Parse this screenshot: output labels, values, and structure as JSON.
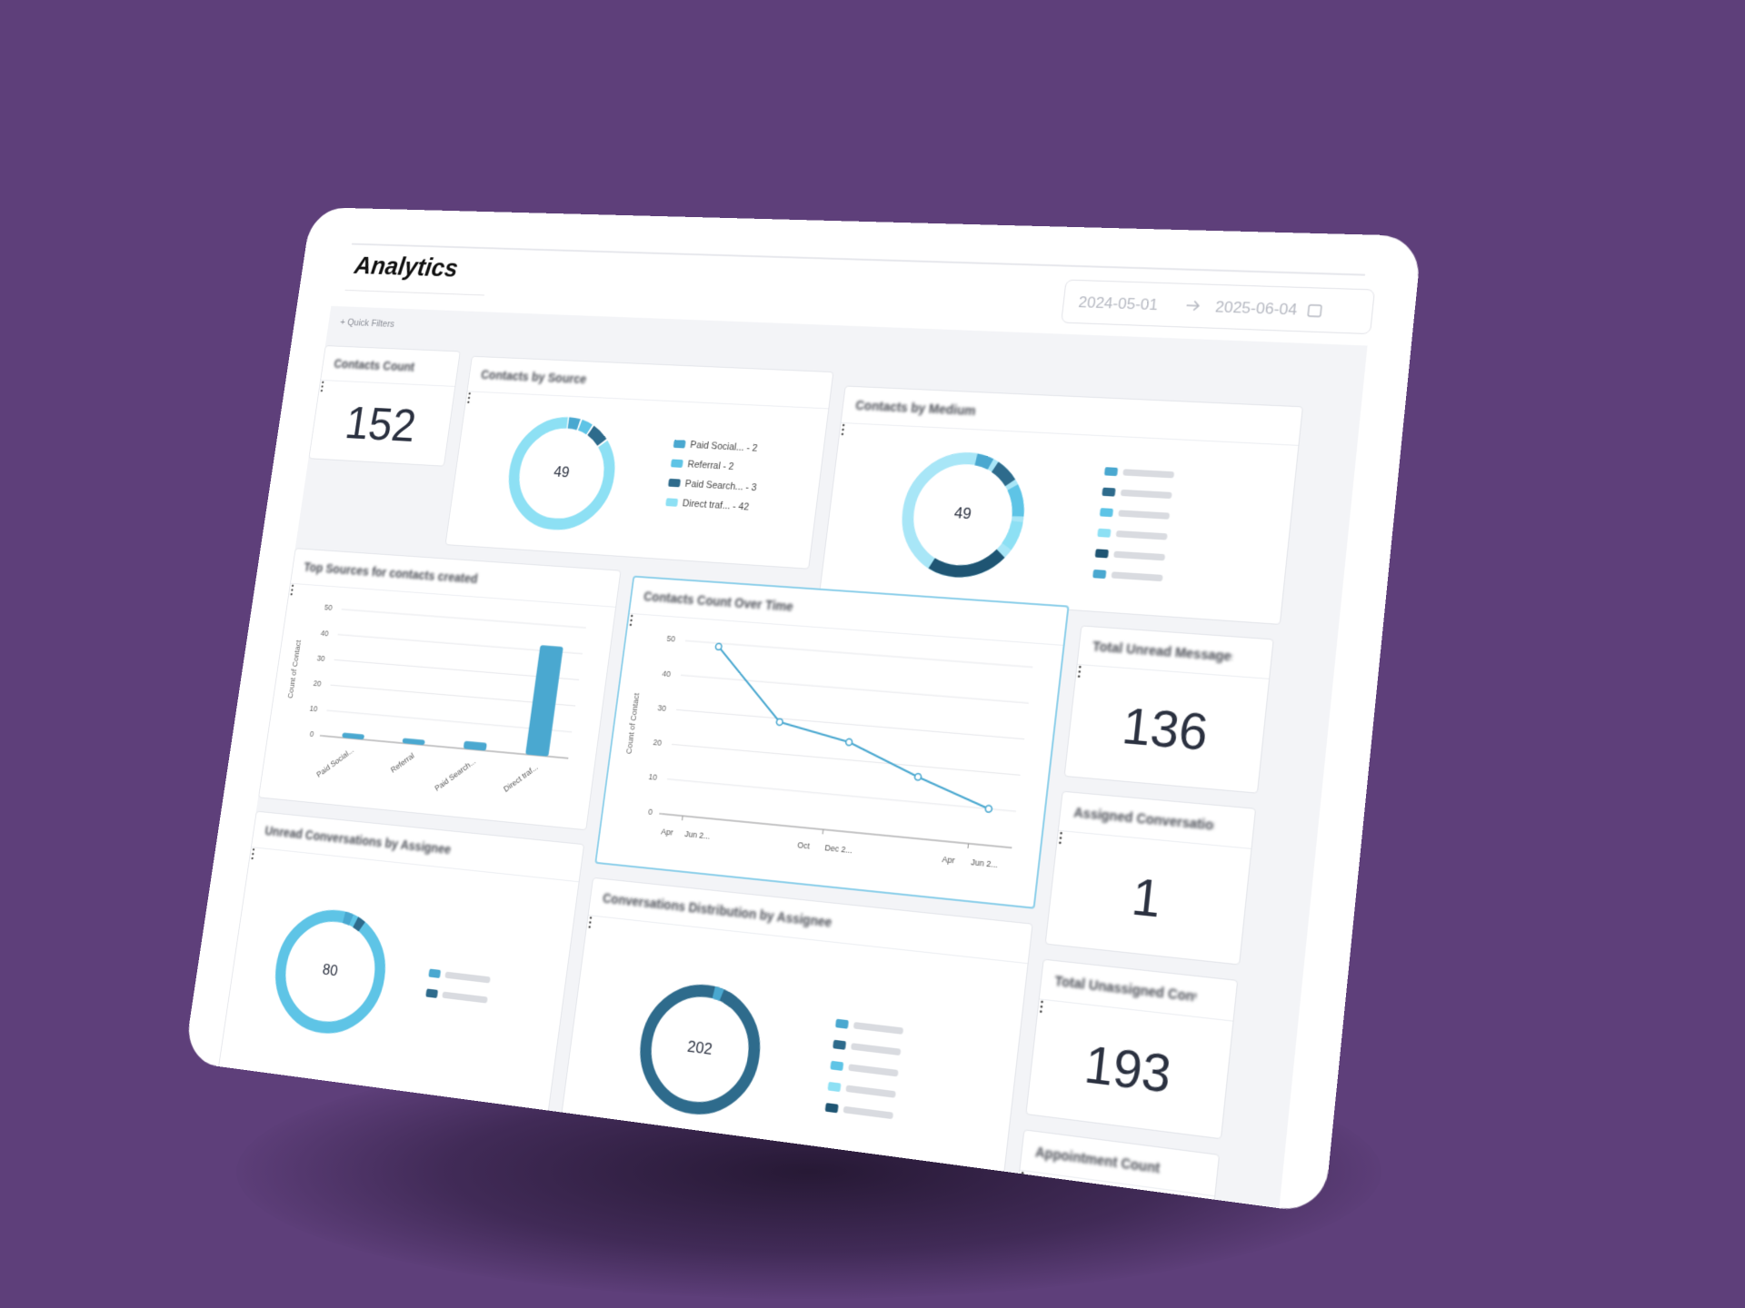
{
  "header": {
    "title": "Analytics",
    "date_start": "2024-05-01",
    "date_end": "2025-06-04"
  },
  "quick_filters": "Quick Filters",
  "widgets": [
    {
      "kind": "metric",
      "title": "Contacts Count",
      "value": 152
    },
    {
      "kind": "donut",
      "title": "Contacts by Source",
      "total": 49,
      "color": "#8de0f4",
      "legend": [
        {
          "label": "Paid Social... - 2",
          "value": 2,
          "color": "#4aa8d0"
        },
        {
          "label": "Referral - 2",
          "value": 2,
          "color": "#5ec4e6"
        },
        {
          "label": "Paid Search... - 3",
          "value": 3,
          "color": "#2e6b8c"
        },
        {
          "label": "Direct traf... - 42",
          "value": 42,
          "color": "#8de0f4"
        }
      ]
    },
    {
      "kind": "donut",
      "title": "Contacts by Medium",
      "total": 49,
      "color": "#a8e6f7"
    },
    {
      "kind": "bar",
      "title": "Top Sources for contacts created",
      "y_label": "Count of Contact",
      "categories": [
        "Paid Social...",
        "Referral",
        "Paid Search...",
        "Direct traf..."
      ],
      "values": [
        2,
        2,
        3,
        42
      ],
      "ylim": [
        0,
        50
      ],
      "yticks": [
        0,
        10,
        20,
        30,
        40,
        50
      ],
      "color": "#4aa8d0"
    },
    {
      "kind": "line",
      "title": "Contacts Count Over Time",
      "y_label": "Count of Contact",
      "x_tick_labels": [
        "Apr",
        "Jun 2...",
        "Oct",
        "Dec 2...",
        "Apr",
        "Jun 2..."
      ],
      "values": [
        49,
        29,
        25,
        17,
        10
      ],
      "ylim": [
        0,
        50
      ],
      "yticks": [
        0,
        10,
        20,
        30,
        40,
        50
      ],
      "color": "#4aa8d0"
    },
    {
      "kind": "metric",
      "title": "Total Unread Messages",
      "value": 136
    },
    {
      "kind": "metric",
      "title": "Assigned Conversations",
      "value": 1
    },
    {
      "kind": "metric",
      "title": "Total Unassigned Conversations",
      "value": 193
    },
    {
      "kind": "metric",
      "title": "Appointment Count"
    },
    {
      "kind": "donut",
      "title": "Unread Conversations by Assignee",
      "total": 80,
      "color": "#5ec4e6"
    },
    {
      "kind": "donut",
      "title": "Conversations Distribution by Assignee",
      "total": 202,
      "color": "#2e6b8c"
    }
  ]
}
